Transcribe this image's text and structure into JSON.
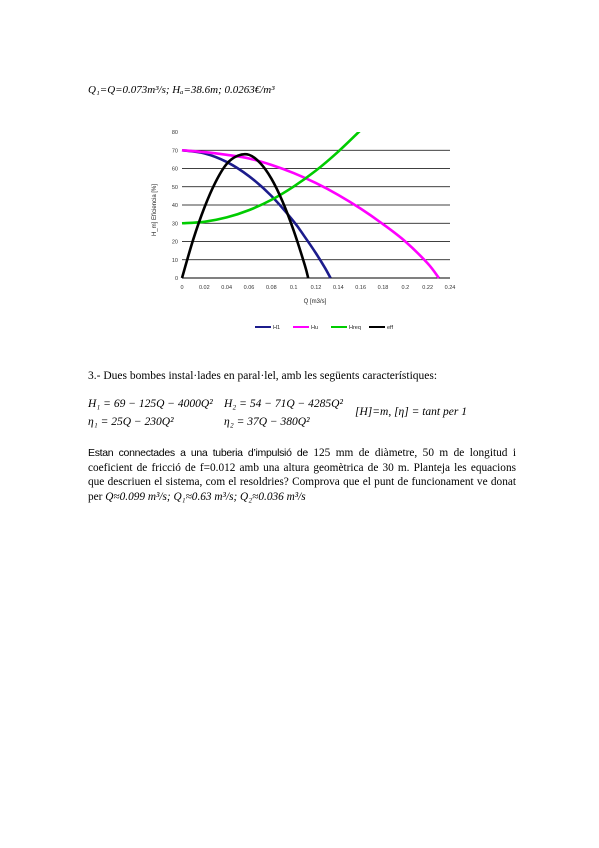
{
  "result_line": "Q₁=Q=0.073m³/s; Hₐ=38.6m; 0.0263€/m³",
  "chart_data": {
    "type": "line",
    "xlabel": "Q [m3/s]",
    "ylabel": "H_m] Eficiencia [%]",
    "xlim": [
      0,
      0.24
    ],
    "ylim": [
      0,
      80
    ],
    "x_ticks": [
      "0",
      "0.02",
      "0.04",
      "0.06",
      "0.08",
      "0.1",
      "0.12",
      "0.14",
      "0.16",
      "0.18",
      "0.2",
      "0.22",
      "0.24"
    ],
    "y_ticks": [
      "0",
      "10",
      "20",
      "30",
      "40",
      "50",
      "60",
      "70",
      "80"
    ],
    "grid": "horizontal",
    "legend_position": "bottom",
    "series": [
      {
        "name": "H1",
        "color": "#1c1c8c",
        "points": [
          [
            0,
            70
          ],
          [
            0.02,
            68.3
          ],
          [
            0.04,
            63.6
          ],
          [
            0.06,
            55.8
          ],
          [
            0.08,
            45
          ],
          [
            0.1,
            31
          ],
          [
            0.11,
            22.5
          ],
          [
            0.12,
            13.5
          ],
          [
            0.128,
            5.6
          ],
          [
            0.133,
            0
          ]
        ]
      },
      {
        "name": "Hu",
        "color": "#ff00ff",
        "points": [
          [
            0,
            70
          ],
          [
            0.02,
            69
          ],
          [
            0.04,
            67.5
          ],
          [
            0.06,
            65.5
          ],
          [
            0.08,
            62
          ],
          [
            0.1,
            57.5
          ],
          [
            0.12,
            52
          ],
          [
            0.14,
            45.5
          ],
          [
            0.16,
            38
          ],
          [
            0.18,
            29.5
          ],
          [
            0.2,
            20
          ],
          [
            0.22,
            8
          ],
          [
            0.23,
            0
          ]
        ]
      },
      {
        "name": "Hreq",
        "color": "#00cc00",
        "points": [
          [
            0,
            30
          ],
          [
            0.02,
            30.8
          ],
          [
            0.04,
            33.2
          ],
          [
            0.06,
            37.2
          ],
          [
            0.08,
            42.8
          ],
          [
            0.1,
            50.1
          ],
          [
            0.12,
            58.9
          ],
          [
            0.14,
            69.3
          ],
          [
            0.16,
            81
          ]
        ]
      },
      {
        "name": "eff",
        "color": "#000000",
        "points": [
          [
            0,
            0
          ],
          [
            0.01,
            21
          ],
          [
            0.02,
            38.5
          ],
          [
            0.03,
            52.5
          ],
          [
            0.04,
            62.5
          ],
          [
            0.05,
            67
          ],
          [
            0.06,
            67.5
          ],
          [
            0.07,
            63
          ],
          [
            0.08,
            54.5
          ],
          [
            0.09,
            42
          ],
          [
            0.1,
            26
          ],
          [
            0.11,
            7
          ],
          [
            0.113,
            0
          ]
        ]
      }
    ]
  },
  "problem_heading": "3.- Dues bombes instal·lades en paral·lel, amb les següents característiques:",
  "equations": {
    "h1": "H₁ = 69 − 125Q − 4000Q²",
    "h2": "H₂ = 54 − 71Q − 4285Q²",
    "eta1": "η₁ = 25Q − 230Q²",
    "eta2": "η₂ = 37Q − 380Q²",
    "units": "[H]=m, [η] = tant per 1"
  },
  "problem_text": {
    "lead": "Estan connectades a una tuberia d’impulsió de",
    "body": " 125 mm de diàmetre, 50 m de longitud i coeficient de fricció de f=0.012 amb una altura geomètrica de 30 m. Planteja les equacions que descriuen el sistema, com el resoldries? Comprova que el punt de funcionament ve donat per ",
    "result": "Q≈0.099 m³/s; Q₁≈0.63 m³/s; Q₂≈0.036 m³/s"
  }
}
